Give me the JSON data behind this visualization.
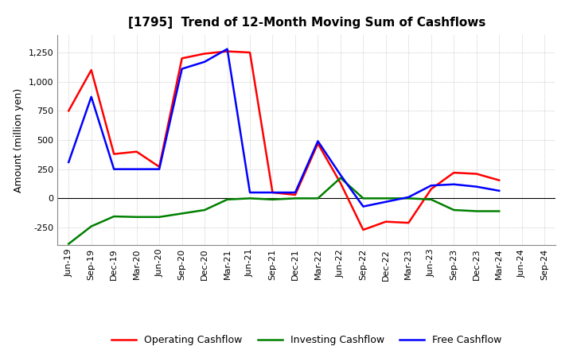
{
  "title": "[1795]  Trend of 12-Month Moving Sum of Cashflows",
  "ylabel": "Amount (million yen)",
  "x_labels": [
    "Jun-19",
    "Sep-19",
    "Dec-19",
    "Mar-20",
    "Jun-20",
    "Sep-20",
    "Dec-20",
    "Mar-21",
    "Jun-21",
    "Sep-21",
    "Dec-21",
    "Mar-22",
    "Jun-22",
    "Sep-22",
    "Dec-22",
    "Mar-23",
    "Jun-23",
    "Sep-23",
    "Dec-23",
    "Mar-24",
    "Jun-24",
    "Sep-24"
  ],
  "operating": [
    750,
    1100,
    380,
    400,
    270,
    1200,
    1240,
    1260,
    1250,
    50,
    30,
    470,
    130,
    -270,
    -200,
    -210,
    80,
    220,
    210,
    155,
    null,
    null
  ],
  "investing": [
    -390,
    -240,
    -155,
    -160,
    -160,
    -130,
    -100,
    -10,
    0,
    -10,
    0,
    0,
    175,
    0,
    0,
    0,
    -10,
    -100,
    -110,
    -110,
    null,
    null
  ],
  "free": [
    310,
    870,
    250,
    250,
    250,
    1110,
    1170,
    1280,
    50,
    50,
    50,
    490,
    200,
    -70,
    -30,
    10,
    110,
    120,
    100,
    65,
    null,
    null
  ],
  "operating_color": "#ff0000",
  "investing_color": "#008000",
  "free_color": "#0000ff",
  "ylim": [
    -400,
    1400
  ],
  "yticks": [
    -250,
    0,
    250,
    500,
    750,
    1000,
    1250
  ],
  "background_color": "#ffffff",
  "grid_color": "#aaaaaa",
  "legend_labels": [
    "Operating Cashflow",
    "Investing Cashflow",
    "Free Cashflow"
  ],
  "title_fontsize": 11,
  "axis_fontsize": 8,
  "ylabel_fontsize": 9,
  "linewidth": 1.8
}
